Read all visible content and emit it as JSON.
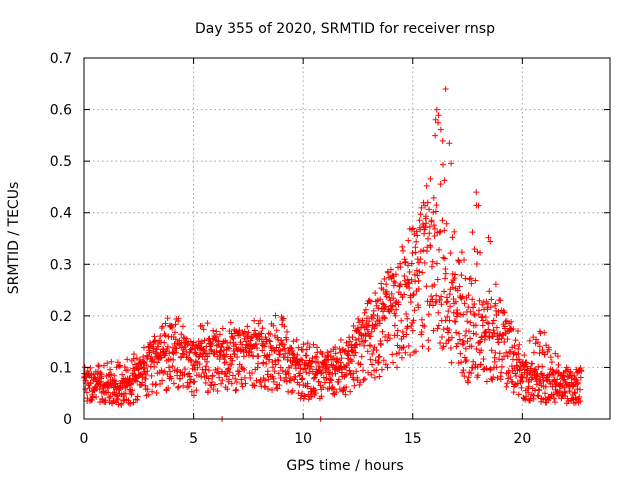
{
  "chart_data": {
    "type": "scatter",
    "title": "Day 355 of 2020, SRMTID for receiver rnsp",
    "xlabel": "GPS time / hours",
    "ylabel": "SRMTID / TECUs",
    "xlim": [
      0,
      24
    ],
    "ylim": [
      0,
      0.7
    ],
    "x_ticks": [
      0,
      5,
      10,
      15,
      20
    ],
    "x_tick_labels": [
      "0",
      "5",
      "10",
      "15",
      "20"
    ],
    "y_ticks": [
      0,
      0.1,
      0.2,
      0.3,
      0.4,
      0.5,
      0.6,
      0.7
    ],
    "y_tick_labels": [
      "0",
      "0.1",
      "0.2",
      "0.3",
      "0.4",
      "0.5",
      "0.6",
      "0.7"
    ],
    "grid": true,
    "legend": "none",
    "marker": "+",
    "color": "#ff0000",
    "series": [
      {
        "name": "SRMTID",
        "envelope_x": [
          0,
          1,
          2,
          3,
          4,
          5,
          6,
          7,
          8,
          9,
          10,
          11,
          12,
          13,
          14,
          15,
          15.5,
          16,
          16.5,
          17,
          17.5,
          18,
          19,
          20,
          21,
          22,
          22.7
        ],
        "envelope_mean": [
          0.07,
          0.06,
          0.06,
          0.1,
          0.13,
          0.1,
          0.12,
          0.12,
          0.12,
          0.12,
          0.08,
          0.09,
          0.1,
          0.16,
          0.2,
          0.26,
          0.3,
          0.3,
          0.27,
          0.2,
          0.15,
          0.16,
          0.16,
          0.08,
          0.07,
          0.06,
          0.07
        ],
        "envelope_max": [
          0.1,
          0.11,
          0.12,
          0.15,
          0.21,
          0.18,
          0.19,
          0.2,
          0.19,
          0.23,
          0.15,
          0.14,
          0.16,
          0.24,
          0.3,
          0.38,
          0.42,
          0.58,
          0.64,
          0.36,
          0.3,
          0.45,
          0.26,
          0.15,
          0.17,
          0.1,
          0.1
        ],
        "outliers": [
          {
            "x": 6.3,
            "y": 0.0
          },
          {
            "x": 10.8,
            "y": 0.0
          },
          {
            "x": 16.1,
            "y": 0.6
          },
          {
            "x": 16.5,
            "y": 0.64
          },
          {
            "x": 17.9,
            "y": 0.44
          },
          {
            "x": 20.8,
            "y": 0.17
          }
        ]
      }
    ]
  }
}
